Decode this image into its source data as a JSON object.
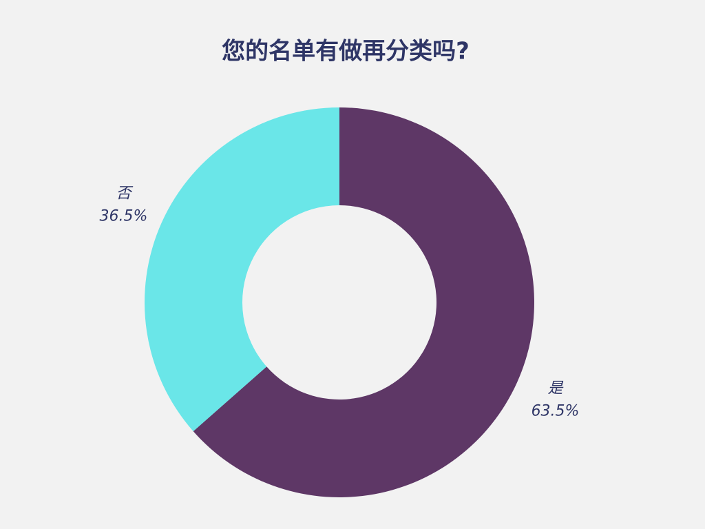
{
  "chart_data": {
    "type": "donut",
    "title": "您的名单有做再分类吗?",
    "categories": [
      "是",
      "否"
    ],
    "values": [
      63.5,
      36.5
    ],
    "value_labels": [
      "63.5%",
      "36.5%"
    ],
    "colors": [
      "#5e3766",
      "#6ae6e8"
    ]
  }
}
